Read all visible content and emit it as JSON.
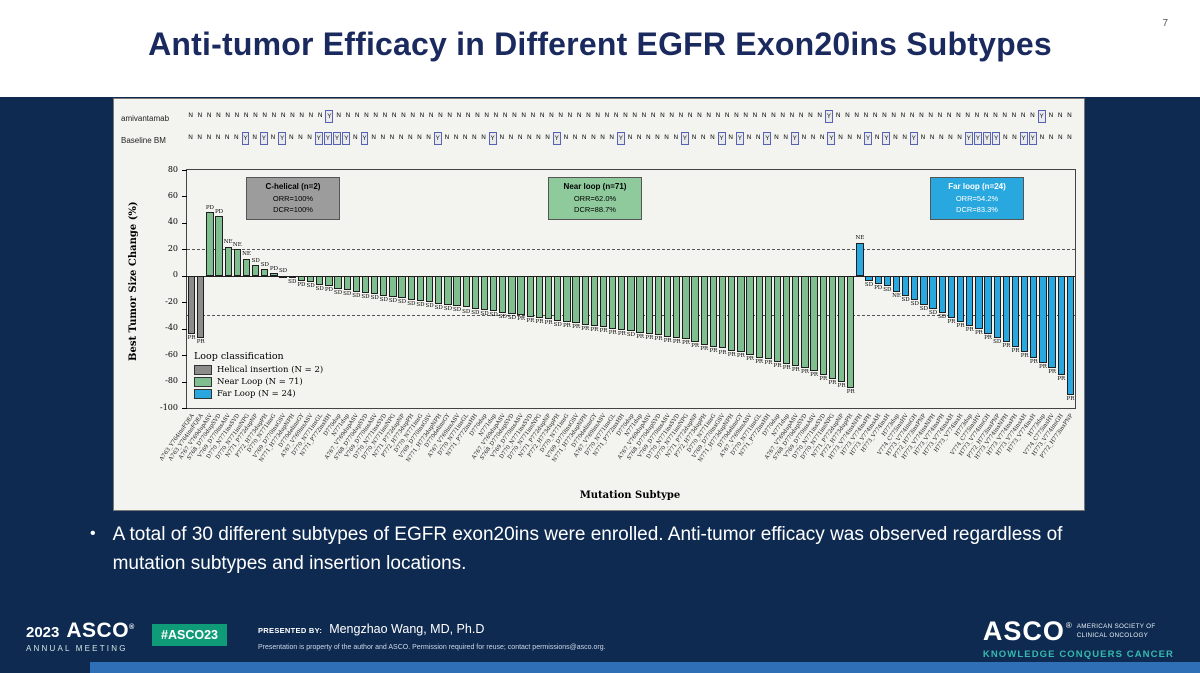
{
  "slide": {
    "page_number": "7",
    "title": "Anti-tumor Efficacy in Different EGFR Exon20ins Subtypes",
    "bullet_glyph": "•",
    "bullet": "A total of 30 different subtypes of EGFR exon20ins were enrolled. Anti-tumor efficacy was observed regardless of mutation subtypes and insertion locations."
  },
  "footer": {
    "year": "2023",
    "asco": "ASCO",
    "reg": "®",
    "meeting": "ANNUAL MEETING",
    "hashtag": "#ASCO23",
    "presented_by_label": "PRESENTED BY:",
    "presenter": "Mengzhao Wang, MD, Ph.D",
    "disclaimer": "Presentation is property of the author and ASCO. Permission required for reuse; contact permissions@asco.org.",
    "asco_right": "ASCO",
    "asco_right_sub1": "AMERICAN SOCIETY OF",
    "asco_right_sub2": "CLINICAL ONCOLOGY",
    "tagline": "KNOWLEDGE CONQUERS CANCER"
  },
  "chart_data": {
    "type": "bar",
    "waterfall": true,
    "title": "",
    "ylabel": "Best Tumor Size Change (%)",
    "xlabel": "Mutation Subtype",
    "ylim": [
      -100,
      80
    ],
    "yticks": [
      80,
      60,
      40,
      20,
      0,
      -20,
      -40,
      -60,
      -80,
      -100
    ],
    "dashed_reference_lines": [
      20,
      -30
    ],
    "row_labels": {
      "top": "amivantamab",
      "bottom": "Baseline BM"
    },
    "amivantamab_row": "NNNNNNNNNNNNNNNYNNNNNNNNNNNNNNNNNNNNNNNNNNNNNNNNNNNNNNNNNNNNNNNNNNNNNYNNNNNNNNNNNNNNNNNNNNNNYNNN",
    "baseline_bm_row": "NNNNNNYNYNYNNNYYYYNYNNNNNNNYNNNNNYNNNNNNYNNNNNNYNNNNNNYNNNYNYNNYNNYNNNYNNNYNYNNYNNNNNYYYYNNYYNNNN",
    "legend": {
      "title": "Loop classification",
      "items": [
        {
          "label": "Helical insertion (N = 2)",
          "color": "#8c8c8c"
        },
        {
          "label": "Near Loop (N = 71)",
          "color": "#7fbe8e"
        },
        {
          "label": "Far Loop (N = 24)",
          "color": "#29a8df"
        }
      ]
    },
    "groups": [
      {
        "name": "Helical insertion",
        "n": 2,
        "color": "#8c8c8c"
      },
      {
        "name": "Near Loop",
        "n": 71,
        "color": "#7fbe8e"
      },
      {
        "name": "Far Loop",
        "n": 24,
        "color": "#29a8df"
      }
    ],
    "annotations": [
      {
        "title": "C-helical (n=2)",
        "line1": "ORR=100%",
        "line2": "DCR=100%",
        "bg": "#9c9c9c",
        "fg": "#000000"
      },
      {
        "title": "Near loop (n=71)",
        "line1": "ORR=62.0%",
        "line2": "DCR=88.7%",
        "bg": "#8fca9c",
        "fg": "#000000"
      },
      {
        "title": "Far loop (n=24)",
        "line1": "ORR=54.2%",
        "line2": "DCR=83.3%",
        "bg": "#29a8df",
        "fg": "#ffffff"
      }
    ],
    "bars": [
      [
        -44,
        "PR",
        "A763_Y764insFQEA"
      ],
      [
        -47,
        "PR",
        "A763_Y764insFQEA"
      ],
      [
        48,
        "PD",
        "A767_V769dupASV"
      ],
      [
        45,
        "PD",
        "S768_D770dupSVD"
      ],
      [
        22,
        "NE",
        "V769_D770insASV"
      ],
      [
        20,
        "NE",
        "D770_N771insSVD"
      ],
      [
        13,
        "NE",
        "D770_N771insNPG"
      ],
      [
        8,
        "SD",
        "N771_P772dupNP"
      ],
      [
        5,
        "SD",
        "P772_H773dupPH"
      ],
      [
        2,
        "PD",
        "D770_N771insG"
      ],
      [
        0,
        "SD",
        "V769_D770insGSV"
      ],
      [
        -2,
        "SD",
        "N771_H773dupNPH"
      ],
      [
        -4,
        "PD",
        "D770delinsGY"
      ],
      [
        -5,
        "SD",
        "A767_V769insASV"
      ],
      [
        -7,
        "SD",
        "D770_N771insGL"
      ],
      [
        -8,
        "PD",
        "N771_P772insHH"
      ],
      [
        -10,
        "SD",
        "D770dup"
      ],
      [
        -11,
        "SD",
        "N771dup"
      ],
      [
        -12,
        "SD",
        "A767_V769dupASV"
      ],
      [
        -13,
        "SD",
        "S768_D770dupSVD"
      ],
      [
        -14,
        "SD",
        "V769_D770insASV"
      ],
      [
        -15,
        "SD",
        "D770_N771insSVD"
      ],
      [
        -16,
        "SD",
        "D770_N771insNPG"
      ],
      [
        -17,
        "SD",
        "N771_P772dupNP"
      ],
      [
        -18,
        "SD",
        "P772_H773dupPH"
      ],
      [
        -19,
        "SD",
        "D770_N771insG"
      ],
      [
        -20,
        "SD",
        "V769_D770insGSV"
      ],
      [
        -21,
        "SD",
        "N771_H773dupNPH"
      ],
      [
        -22,
        "SD",
        "D770delinsGY"
      ],
      [
        -23,
        "SD",
        "A767_V769insASV"
      ],
      [
        -24,
        "SD",
        "D770_N771insGL"
      ],
      [
        -25,
        "SD",
        "N771_P772insHH"
      ],
      [
        -26,
        "SD",
        "D770dup"
      ],
      [
        -27,
        "SD",
        "N771dup"
      ],
      [
        -28,
        "SD",
        "A767_V769dupASV"
      ],
      [
        -29,
        "SD",
        "S768_D770dupSVD"
      ],
      [
        -30,
        "PR",
        "V769_D770insASV"
      ],
      [
        -31,
        "PR",
        "D770_N771insSVD"
      ],
      [
        -32,
        "PR",
        "D770_N771insNPG"
      ],
      [
        -33,
        "PR",
        "N771_P772dupNP"
      ],
      [
        -34,
        "SD",
        "P772_H773dupPH"
      ],
      [
        -35,
        "PR",
        "D770_N771insG"
      ],
      [
        -36,
        "PR",
        "V769_D770insGSV"
      ],
      [
        -37,
        "PR",
        "N771_H773dupNPH"
      ],
      [
        -38,
        "PR",
        "D770delinsGY"
      ],
      [
        -39,
        "PR",
        "A767_V769insASV"
      ],
      [
        -40,
        "PR",
        "D770_N771insGL"
      ],
      [
        -41,
        "PR",
        "N771_P772insHH"
      ],
      [
        -42,
        "SD",
        "D770dup"
      ],
      [
        -43,
        "PR",
        "N771dup"
      ],
      [
        -44,
        "PR",
        "A767_V769dupASV"
      ],
      [
        -45,
        "PR",
        "S768_D770dupSVD"
      ],
      [
        -46,
        "PR",
        "V769_D770insASV"
      ],
      [
        -47,
        "PR",
        "D770_N771insSVD"
      ],
      [
        -48,
        "PR",
        "D770_N771insNPG"
      ],
      [
        -50,
        "PR",
        "N771_P772dupNP"
      ],
      [
        -52,
        "PR",
        "P772_H773dupPH"
      ],
      [
        -54,
        "PR",
        "D770_N771insG"
      ],
      [
        -55,
        "PR",
        "V769_D770insGSV"
      ],
      [
        -57,
        "PR",
        "N771_H773dupNPH"
      ],
      [
        -58,
        "PR",
        "D770delinsGY"
      ],
      [
        -60,
        "PR",
        "A767_V769insASV"
      ],
      [
        -62,
        "PR",
        "D770_N771insGL"
      ],
      [
        -63,
        "PR",
        "N771_P772insHH"
      ],
      [
        -65,
        "PR",
        "D770dup"
      ],
      [
        -67,
        "PR",
        "N771dup"
      ],
      [
        -68,
        "PR",
        "A767_V769dupASV"
      ],
      [
        -70,
        "PR",
        "S768_D770dupSVD"
      ],
      [
        -72,
        "PR",
        "V769_D770insASV"
      ],
      [
        -75,
        "PR",
        "D770_N771insSVD"
      ],
      [
        -78,
        "PR",
        "D770_N771insNPG"
      ],
      [
        -80,
        "PR",
        "N771_P772dupNP"
      ],
      [
        -85,
        "PR",
        "P772_H773dupPH"
      ],
      [
        25,
        "NE",
        "H773_V774insNPH"
      ],
      [
        -4,
        "SD",
        "H773_V774insPH"
      ],
      [
        -6,
        "PD",
        "H773_V774insAH"
      ],
      [
        -8,
        "SD",
        "H773_V774insH"
      ],
      [
        -12,
        "NE",
        "H773dup"
      ],
      [
        -15,
        "SD",
        "V774_C775insHV"
      ],
      [
        -18,
        "SD",
        "H773_V774insGH"
      ],
      [
        -22,
        "SD",
        "P772_H773insPNP"
      ],
      [
        -25,
        "SD",
        "H773_V774insNPH"
      ],
      [
        -28,
        "SD",
        "H773_V774insPH"
      ],
      [
        -32,
        "PR",
        "H773_V774insAH"
      ],
      [
        -35,
        "PR",
        "H773_V774insH"
      ],
      [
        -38,
        "PR",
        "H773dup"
      ],
      [
        -40,
        "PR",
        "V774_C775insHV"
      ],
      [
        -44,
        "PR",
        "H773_V774insGH"
      ],
      [
        -47,
        "SD",
        "P772_H773insPNP"
      ],
      [
        -50,
        "PR",
        "H773_V774insNPH"
      ],
      [
        -54,
        "PR",
        "H773_V774insPH"
      ],
      [
        -58,
        "PR",
        "H773_V774insAH"
      ],
      [
        -62,
        "PR",
        "H773_V774insH"
      ],
      [
        -66,
        "PR",
        "H773dup"
      ],
      [
        -70,
        "PR",
        "V774_C775insHV"
      ],
      [
        -75,
        "PR",
        "H773_V774insGH"
      ],
      [
        -90,
        "PR",
        "P772_H773insPNP"
      ]
    ]
  }
}
